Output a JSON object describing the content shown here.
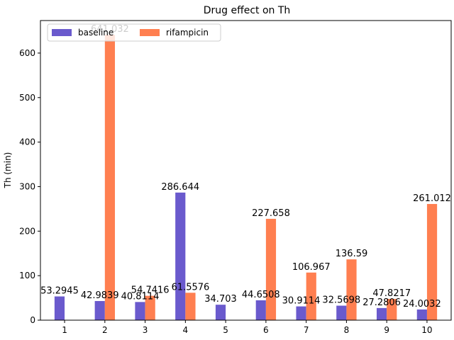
{
  "chart_data": {
    "type": "bar",
    "title": "Drug effect on Th",
    "xlabel": "",
    "ylabel": "Th (min)",
    "categories": [
      "1",
      "2",
      "3",
      "4",
      "5",
      "6",
      "7",
      "8",
      "9",
      "10"
    ],
    "series": [
      {
        "name": "baseline",
        "color": "#6a5acd",
        "values": [
          53.2945,
          42.9839,
          40.8114,
          286.644,
          34.703,
          44.6508,
          30.9114,
          32.5698,
          27.2806,
          24.0032
        ],
        "labels": [
          "53.2945",
          "42.9839",
          "40.8114",
          "286.644",
          "34.703",
          "44.6508",
          "30.9114",
          "32.5698",
          "27.2806",
          "24.0032"
        ]
      },
      {
        "name": "rifampicin",
        "color": "#ff7f50",
        "values": [
          null,
          641.032,
          54.7416,
          61.5576,
          null,
          227.658,
          106.967,
          136.59,
          47.8217,
          261.012
        ],
        "labels": [
          "",
          "641.032",
          "54.7416",
          "61.5576",
          "",
          "227.658",
          "106.967",
          "136.59",
          "47.8217",
          "261.012"
        ]
      }
    ],
    "yticks": [
      0,
      100,
      200,
      300,
      400,
      500,
      600
    ],
    "ylim": [
      0,
      673.08
    ],
    "legend": {
      "placement": "top-left",
      "columns": 2
    },
    "grid": false
  }
}
